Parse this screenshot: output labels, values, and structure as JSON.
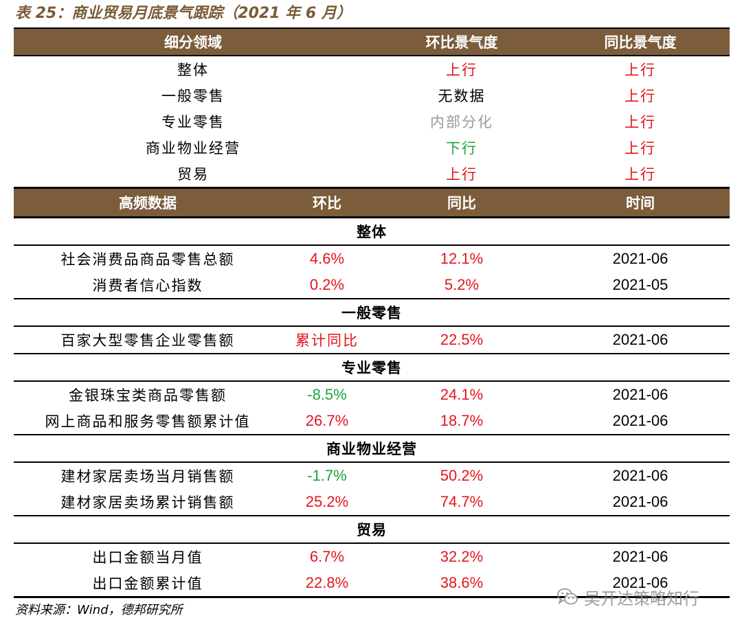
{
  "title": "表 25：商业贸易月底景气跟踪（2021 年 6 月）",
  "sentiment_header": [
    "细分领域",
    "环比景气度",
    "同比景气度"
  ],
  "sentiment_rows": [
    {
      "sector": "整体",
      "mom": "上行",
      "mom_color": "#e4141b",
      "yoy": "上行",
      "yoy_color": "#e4141b"
    },
    {
      "sector": "一般零售",
      "mom": "无数据",
      "mom_color": "#000000",
      "yoy": "上行",
      "yoy_color": "#e4141b"
    },
    {
      "sector": "专业零售",
      "mom": "内部分化",
      "mom_color": "#9a9a9a",
      "yoy": "上行",
      "yoy_color": "#e4141b"
    },
    {
      "sector": "商业物业经营",
      "mom": "下行",
      "mom_color": "#1aa33c",
      "yoy": "上行",
      "yoy_color": "#e4141b"
    },
    {
      "sector": "贸易",
      "mom": "上行",
      "mom_color": "#e4141b",
      "yoy": "上行",
      "yoy_color": "#e4141b"
    }
  ],
  "data_header": [
    "高频数据",
    "环比",
    "同比",
    "时间"
  ],
  "sections": [
    {
      "name": "整体",
      "rows": [
        {
          "indicator": "社会消费品商品零售总额",
          "mom": "4.6%",
          "mom_color": "#e4141b",
          "yoy": "12.1%",
          "yoy_color": "#e4141b",
          "time": "2021-06"
        },
        {
          "indicator": "消费者信心指数",
          "mom": "0.2%",
          "mom_color": "#e4141b",
          "yoy": "5.2%",
          "yoy_color": "#e4141b",
          "time": "2021-05"
        }
      ]
    },
    {
      "name": "一般零售",
      "rows": [
        {
          "indicator": "百家大型零售企业零售额",
          "mom": "累计同比",
          "mom_color": "#e4141b",
          "yoy": "22.5%",
          "yoy_color": "#e4141b",
          "time": "2021-06"
        }
      ]
    },
    {
      "name": "专业零售",
      "rows": [
        {
          "indicator": "金银珠宝类商品零售额",
          "mom": "-8.5%",
          "mom_color": "#1aa33c",
          "yoy": "24.1%",
          "yoy_color": "#e4141b",
          "time": "2021-06"
        },
        {
          "indicator": "网上商品和服务零售额累计值",
          "mom": "26.7%",
          "mom_color": "#e4141b",
          "yoy": "18.7%",
          "yoy_color": "#e4141b",
          "time": "2021-06"
        }
      ]
    },
    {
      "name": "商业物业经营",
      "rows": [
        {
          "indicator": "建材家居卖场当月销售额",
          "mom": "-1.7%",
          "mom_color": "#1aa33c",
          "yoy": "50.2%",
          "yoy_color": "#e4141b",
          "time": "2021-06"
        },
        {
          "indicator": "建材家居卖场累计销售额",
          "mom": "25.2%",
          "mom_color": "#e4141b",
          "yoy": "74.7%",
          "yoy_color": "#e4141b",
          "time": "2021-06"
        }
      ]
    },
    {
      "name": "贸易",
      "rows": [
        {
          "indicator": "出口金额当月值",
          "mom": "6.7%",
          "mom_color": "#e4141b",
          "yoy": "32.2%",
          "yoy_color": "#e4141b",
          "time": "2021-06"
        },
        {
          "indicator": "出口金额累计值",
          "mom": "22.8%",
          "mom_color": "#e4141b",
          "yoy": "38.6%",
          "yoy_color": "#e4141b",
          "time": "2021-06"
        }
      ]
    }
  ],
  "source": "资料来源：Wind，德邦研究所",
  "watermark": "吴开达策略知行",
  "watermark_icon": "wechat-icon",
  "colors": {
    "header_bg": "#7b5d3b",
    "title": "#7a5a36",
    "up": "#e4141b",
    "down": "#1aa33c",
    "mixed": "#9a9a9a"
  }
}
